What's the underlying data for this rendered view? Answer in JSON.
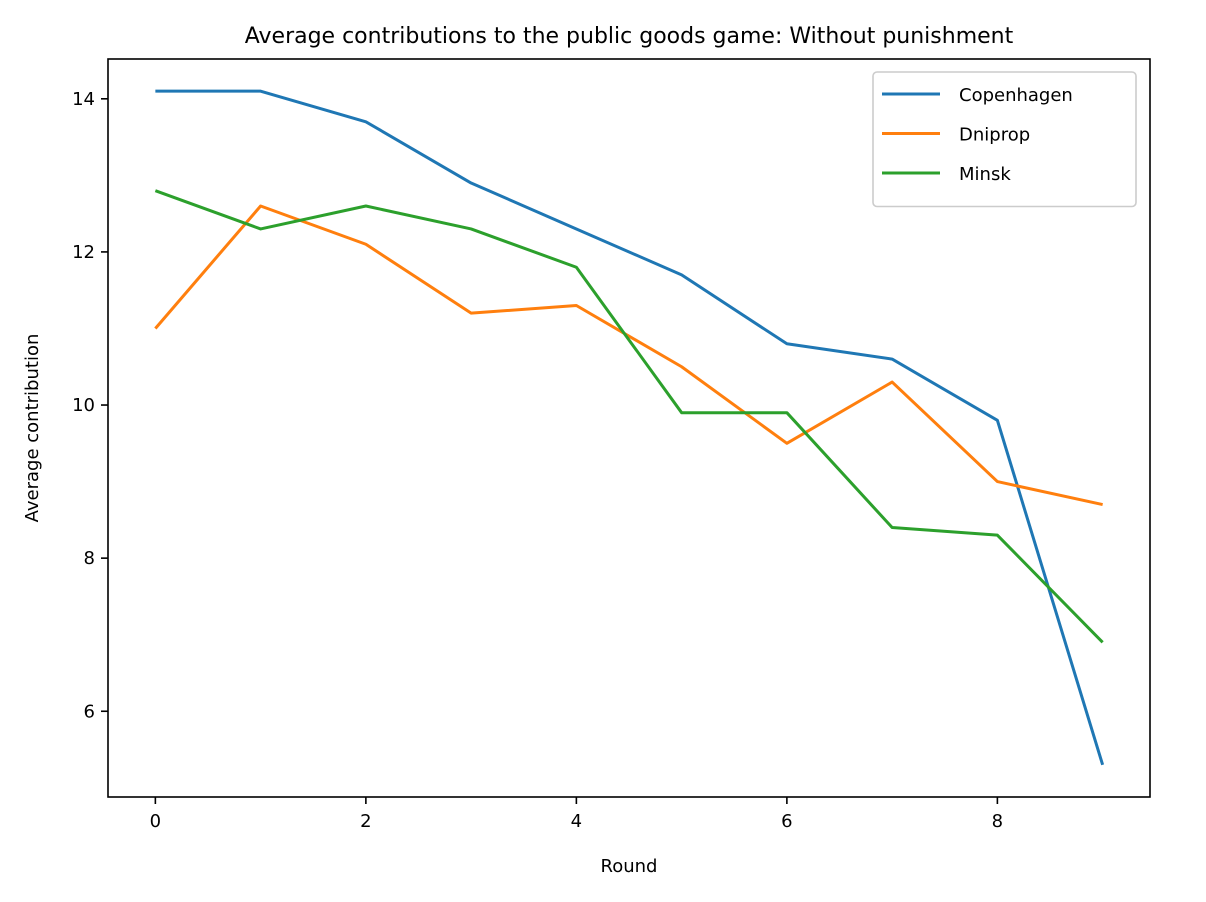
{
  "chart_data": {
    "type": "line",
    "title": "Average contributions to the public goods game: Without punishment",
    "xlabel": "Round",
    "ylabel": "Average contribution",
    "x": [
      0,
      1,
      2,
      3,
      4,
      5,
      6,
      7,
      8,
      9
    ],
    "xlim": [
      -0.45,
      9.45
    ],
    "ylim": [
      4.88,
      14.52
    ],
    "xticks": [
      0,
      2,
      4,
      6,
      8
    ],
    "yticks": [
      6,
      8,
      10,
      12,
      14
    ],
    "grid": false,
    "legend_position": "upper right",
    "series": [
      {
        "name": "Copenhagen",
        "color": "#1f77b4",
        "values": [
          14.1,
          14.1,
          13.7,
          12.9,
          12.3,
          11.7,
          10.8,
          10.6,
          9.8,
          5.3
        ]
      },
      {
        "name": "Dniprop",
        "color": "#ff7f0e",
        "values": [
          11.0,
          12.6,
          12.1,
          11.2,
          11.3,
          10.5,
          9.5,
          10.3,
          9.0,
          8.7
        ]
      },
      {
        "name": "Minsk",
        "color": "#2ca02c",
        "values": [
          12.8,
          12.3,
          12.6,
          12.3,
          11.8,
          9.9,
          9.9,
          8.4,
          8.3,
          6.9
        ]
      }
    ]
  }
}
